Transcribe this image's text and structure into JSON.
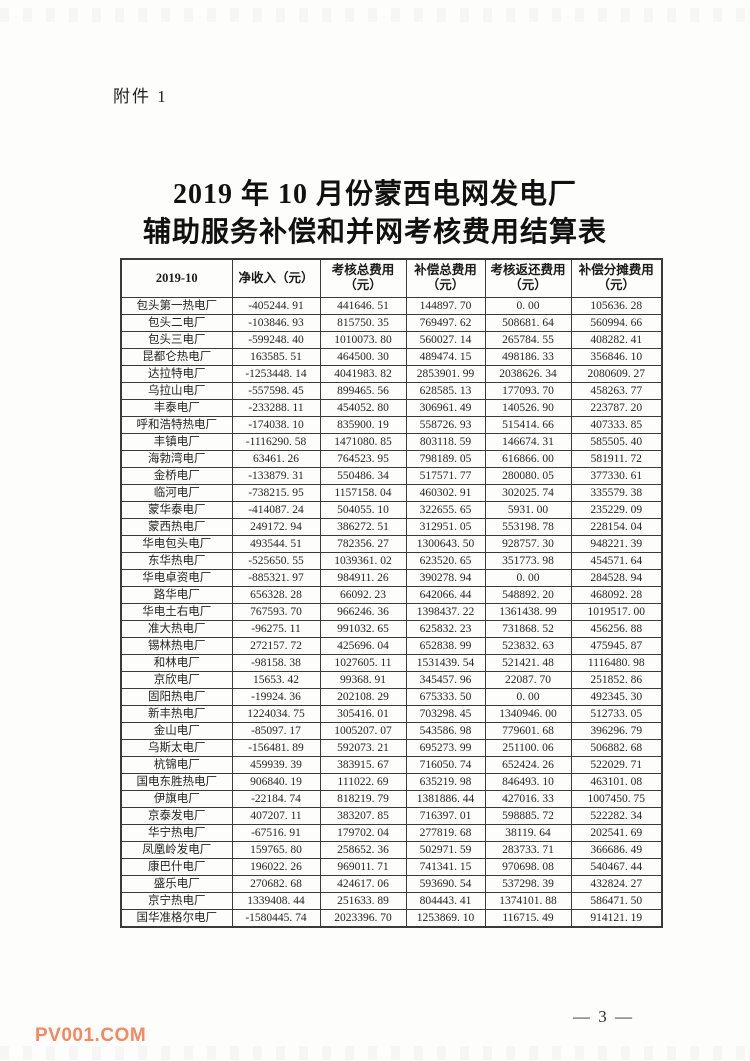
{
  "attachment_label": "附件 1",
  "title": {
    "line1": "2019 年 10 月份蒙西电网发电厂",
    "line2": "辅助服务补偿和并网考核费用结算表"
  },
  "table": {
    "headers": [
      "2019-10",
      "净收入（元）",
      "考核总费用\n（元）",
      "补偿总费用\n（元）",
      "考核返还费用\n（元）",
      "补偿分摊费用\n（元）"
    ],
    "rows": [
      {
        "name": "包头第一热电厂",
        "values": [
          "-405244. 91",
          "441646. 51",
          "144897. 70",
          "0. 00",
          "105636. 28"
        ]
      },
      {
        "name": "包头二电厂",
        "values": [
          "-103846. 93",
          "815750. 35",
          "769497. 62",
          "508681. 64",
          "560994. 66"
        ]
      },
      {
        "name": "包头三电厂",
        "values": [
          "-599248. 40",
          "1010073. 80",
          "560027. 14",
          "265784. 55",
          "408282. 41"
        ]
      },
      {
        "name": "昆都仑热电厂",
        "values": [
          "163585. 51",
          "464500. 30",
          "489474. 15",
          "498186. 33",
          "356846. 10"
        ]
      },
      {
        "name": "达拉特电厂",
        "values": [
          "-1253448. 14",
          "4041983. 82",
          "2853901. 99",
          "2038626. 34",
          "2080609. 27"
        ]
      },
      {
        "name": "乌拉山电厂",
        "values": [
          "-557598. 45",
          "899465. 56",
          "628585. 13",
          "177093. 70",
          "458263. 77"
        ]
      },
      {
        "name": "丰泰电厂",
        "values": [
          "-233288. 11",
          "454052. 80",
          "306961. 49",
          "140526. 90",
          "223787. 20"
        ]
      },
      {
        "name": "呼和浩特热电厂",
        "values": [
          "-174038. 10",
          "835900. 19",
          "558726. 93",
          "515414. 66",
          "407333. 85"
        ]
      },
      {
        "name": "丰镇电厂",
        "values": [
          "-1116290. 58",
          "1471080. 85",
          "803118. 59",
          "146674. 31",
          "585505. 40"
        ]
      },
      {
        "name": "海勃湾电厂",
        "values": [
          "63461. 26",
          "764523. 95",
          "798189. 05",
          "616866. 00",
          "581911. 72"
        ]
      },
      {
        "name": "金桥电厂",
        "values": [
          "-133879. 31",
          "550486. 34",
          "517571. 77",
          "280080. 05",
          "377330. 61"
        ]
      },
      {
        "name": "临河电厂",
        "values": [
          "-738215. 95",
          "1157158. 04",
          "460302. 91",
          "302025. 74",
          "335579. 38"
        ]
      },
      {
        "name": "蒙华泰电厂",
        "values": [
          "-414087. 24",
          "504055. 10",
          "322655. 65",
          "5931. 00",
          "235229. 09"
        ]
      },
      {
        "name": "蒙西热电厂",
        "values": [
          "249172. 94",
          "386272. 51",
          "312951. 05",
          "553198. 78",
          "228154. 04"
        ]
      },
      {
        "name": "华电包头电厂",
        "values": [
          "493544. 51",
          "782356. 27",
          "1300643. 50",
          "928757. 30",
          "948221. 39"
        ]
      },
      {
        "name": "东华热电厂",
        "values": [
          "-525650. 55",
          "1039361. 02",
          "623520. 65",
          "351773. 98",
          "454571. 64"
        ]
      },
      {
        "name": "华电卓资电厂",
        "values": [
          "-885321. 97",
          "984911. 26",
          "390278. 94",
          "0. 00",
          "284528. 94"
        ]
      },
      {
        "name": "路华电厂",
        "values": [
          "656328. 28",
          "66092. 23",
          "642066. 44",
          "548892. 20",
          "468092. 28"
        ]
      },
      {
        "name": "华电土右电厂",
        "values": [
          "767593. 70",
          "966246. 36",
          "1398437. 22",
          "1361438. 99",
          "1019517. 00"
        ]
      },
      {
        "name": "准大热电厂",
        "values": [
          "-96275. 11",
          "991032. 65",
          "625832. 23",
          "731868. 52",
          "456256. 88"
        ]
      },
      {
        "name": "锡林热电厂",
        "values": [
          "272157. 72",
          "425696. 04",
          "652838. 99",
          "523832. 63",
          "475945. 87"
        ]
      },
      {
        "name": "和林电厂",
        "values": [
          "-98158. 38",
          "1027605. 11",
          "1531439. 54",
          "521421. 48",
          "1116480. 98"
        ]
      },
      {
        "name": "京欣电厂",
        "values": [
          "15653. 42",
          "99368. 91",
          "345457. 96",
          "22087. 70",
          "251852. 86"
        ]
      },
      {
        "name": "固阳热电厂",
        "values": [
          "-19924. 36",
          "202108. 29",
          "675333. 50",
          "0. 00",
          "492345. 30"
        ]
      },
      {
        "name": "新丰热电厂",
        "values": [
          "1224034. 75",
          "305416. 01",
          "703298. 45",
          "1340946. 00",
          "512733. 05"
        ]
      },
      {
        "name": "金山电厂",
        "values": [
          "-85097. 17",
          "1005207. 07",
          "543586. 98",
          "779601. 68",
          "396296. 79"
        ]
      },
      {
        "name": "乌斯太电厂",
        "values": [
          "-156481. 89",
          "592073. 21",
          "695273. 99",
          "251100. 06",
          "506882. 68"
        ]
      },
      {
        "name": "杭锦电厂",
        "values": [
          "459939. 39",
          "383915. 67",
          "716050. 74",
          "652424. 26",
          "522029. 71"
        ]
      },
      {
        "name": "国电东胜热电厂",
        "values": [
          "906840. 19",
          "111022. 69",
          "635219. 98",
          "846493. 10",
          "463101. 08"
        ]
      },
      {
        "name": "伊旗电厂",
        "values": [
          "-22184. 74",
          "818219. 79",
          "1381886. 44",
          "427016. 33",
          "1007450. 75"
        ]
      },
      {
        "name": "京泰发电厂",
        "values": [
          "407207. 11",
          "383207. 85",
          "716397. 01",
          "598885. 72",
          "522282. 34"
        ]
      },
      {
        "name": "华宁热电厂",
        "values": [
          "-67516. 91",
          "179702. 04",
          "277819. 68",
          "38119. 64",
          "202541. 69"
        ]
      },
      {
        "name": "凤凰岭发电厂",
        "values": [
          "159765. 80",
          "258652. 36",
          "502971. 59",
          "283733. 71",
          "366686. 49"
        ]
      },
      {
        "name": "康巴什电厂",
        "values": [
          "196022. 26",
          "969011. 71",
          "741341. 15",
          "970698. 08",
          "540467. 44"
        ]
      },
      {
        "name": "盛乐电厂",
        "values": [
          "270682. 68",
          "424617. 06",
          "593690. 54",
          "537298. 39",
          "432824. 27"
        ]
      },
      {
        "name": "京宁热电厂",
        "values": [
          "1339408. 44",
          "251633. 89",
          "804443. 41",
          "1374101. 88",
          "586471. 50"
        ]
      },
      {
        "name": "国华准格尔电厂",
        "values": [
          "-1580445. 74",
          "2023396. 70",
          "1253869. 10",
          "116715. 49",
          "914121. 19"
        ]
      }
    ]
  },
  "footer": {
    "watermark": "PV001.COM",
    "page_number": "— 3 —"
  },
  "colors": {
    "watermark": "#F6875F",
    "border": "#3A3A3A",
    "text": "#1F1F1F"
  }
}
